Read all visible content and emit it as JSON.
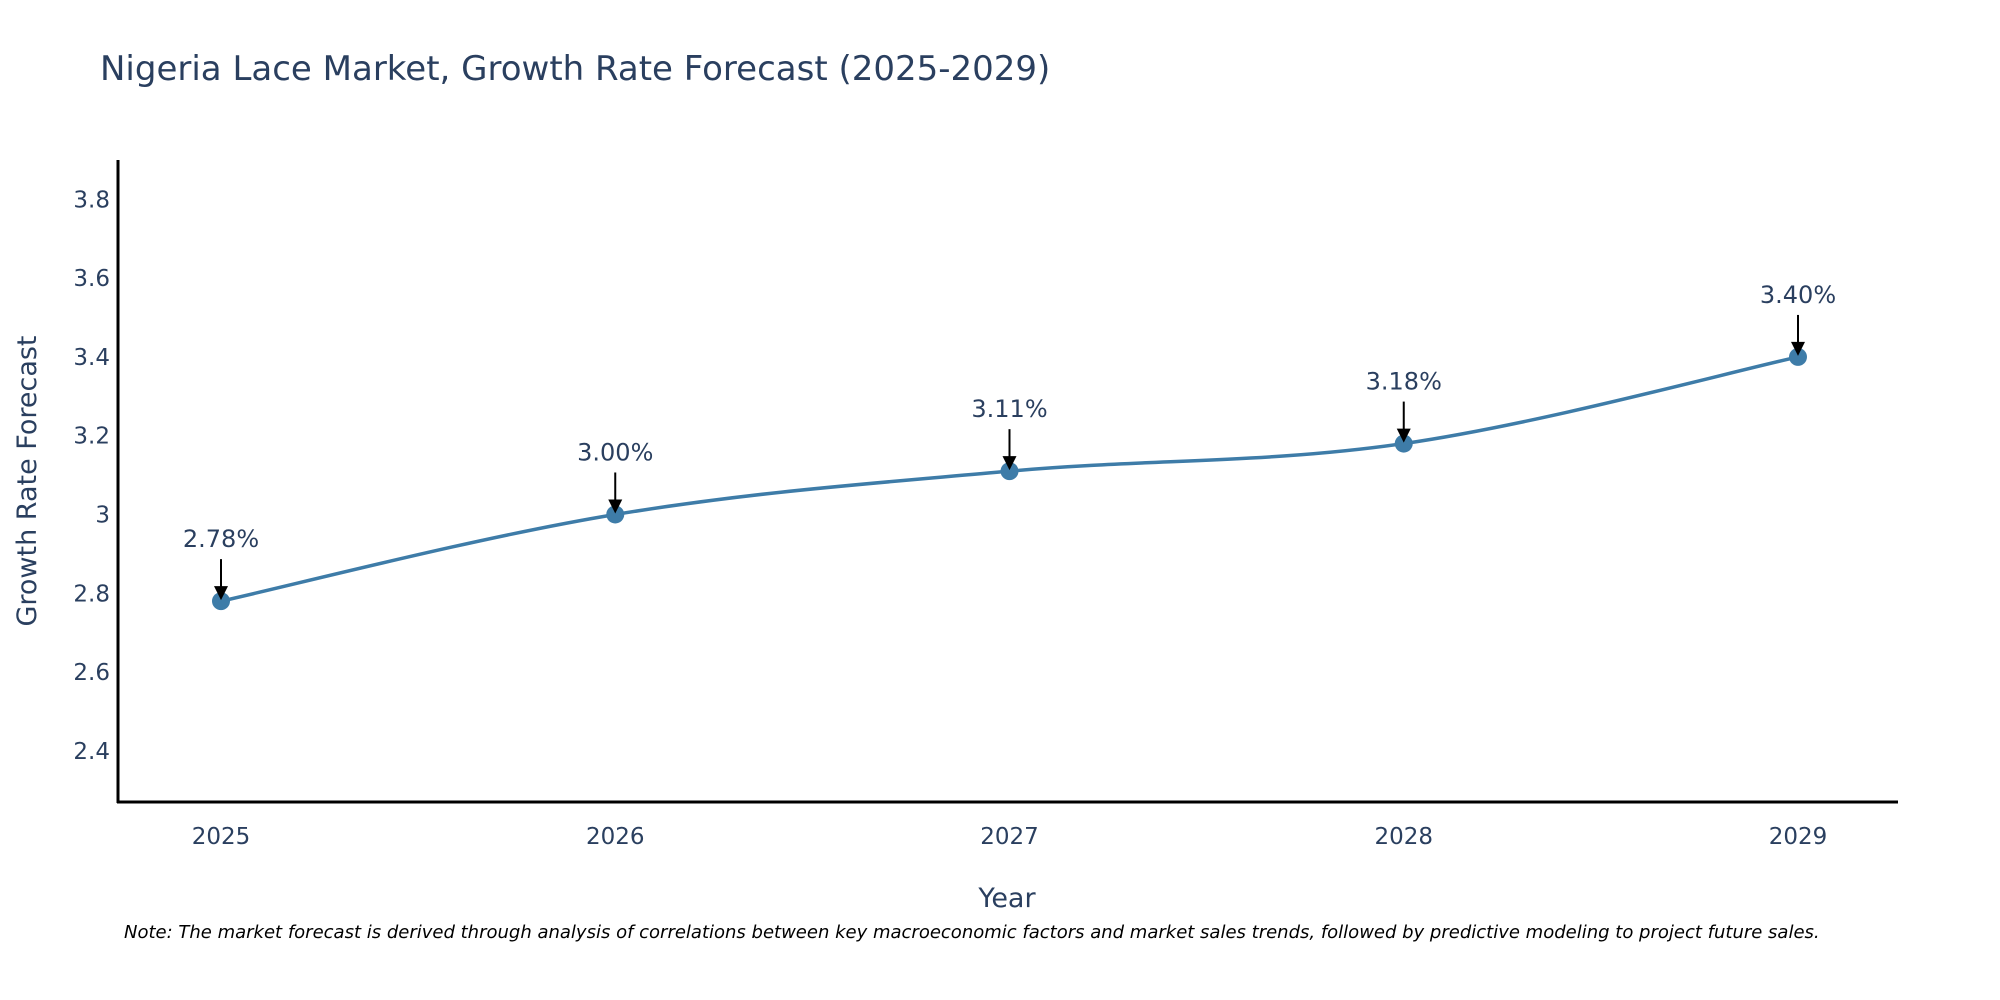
{
  "chart_data": {
    "type": "line",
    "title": "Nigeria Lace Market, Growth Rate Forecast (2025-2029)",
    "xlabel": "Year",
    "ylabel": "Growth Rate Forecast",
    "categories": [
      "2025",
      "2026",
      "2027",
      "2028",
      "2029"
    ],
    "values": [
      2.78,
      3.0,
      3.11,
      3.18,
      3.4
    ],
    "data_labels": [
      "2.78%",
      "3.00%",
      "3.11%",
      "3.18%",
      "3.40%"
    ],
    "ylim": [
      2.27,
      3.9
    ],
    "yticks": [
      2.4,
      2.6,
      2.8,
      3.0,
      3.2,
      3.4,
      3.6,
      3.8
    ],
    "ytick_labels": [
      "2.4",
      "2.6",
      "2.8",
      "3",
      "3.2",
      "3.4",
      "3.6",
      "3.8"
    ],
    "grid": false,
    "line_color": "#3e7ca8",
    "marker_color": "#3e7ca8",
    "arrow_color": "#000000",
    "axis_color": "#000000"
  },
  "note": "Note: The market forecast is derived through analysis of correlations between key macroeconomic factors and market sales trends, followed by predictive modeling to project future sales."
}
